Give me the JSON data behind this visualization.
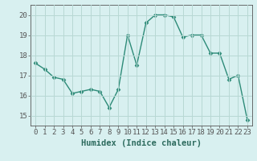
{
  "x": [
    0,
    1,
    2,
    3,
    4,
    5,
    6,
    7,
    8,
    9,
    10,
    11,
    12,
    13,
    14,
    15,
    16,
    17,
    18,
    19,
    20,
    21,
    22,
    23
  ],
  "y": [
    17.6,
    17.3,
    16.9,
    16.8,
    16.1,
    16.2,
    16.3,
    16.2,
    15.4,
    16.3,
    19.0,
    17.5,
    19.6,
    20.0,
    20.0,
    19.9,
    18.9,
    19.0,
    19.0,
    18.1,
    18.1,
    16.8,
    17.0,
    14.8
  ],
  "line_color": "#2d8b78",
  "marker": "D",
  "marker_size": 2.5,
  "bg_color": "#d8f0f0",
  "grid_color": "#b8d8d4",
  "xlabel": "Humidex (Indice chaleur)",
  "ylim": [
    14.5,
    20.5
  ],
  "xlim": [
    -0.5,
    23.5
  ],
  "yticks": [
    15,
    16,
    17,
    18,
    19,
    20
  ],
  "xticks": [
    0,
    1,
    2,
    3,
    4,
    5,
    6,
    7,
    8,
    9,
    10,
    11,
    12,
    13,
    14,
    15,
    16,
    17,
    18,
    19,
    20,
    21,
    22,
    23
  ],
  "axis_color": "#555555",
  "tick_fontsize": 6.5,
  "label_fontsize": 7.5,
  "label_color": "#2d6b5e"
}
